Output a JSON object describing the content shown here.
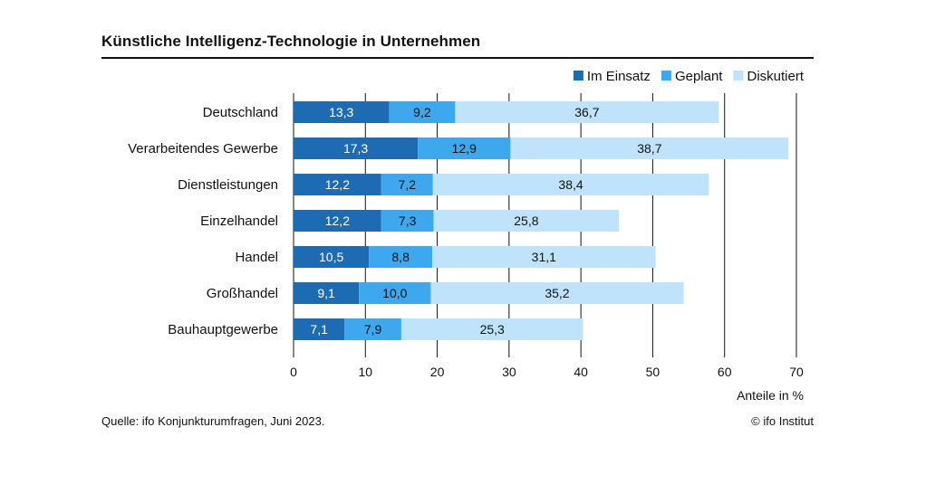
{
  "title": "Künstliche Intelligenz-Technologie in Unternehmen",
  "source": "Quelle: ifo Konjunkturumfragen, Juni 2023.",
  "copyright": "© ifo Institut",
  "colors": {
    "im_einsatz": "#1d6cb3",
    "geplant": "#3ea8ee",
    "diskutiert": "#bfe3fb",
    "grid": "#111111"
  },
  "chart_data": {
    "type": "bar",
    "orientation": "horizontal",
    "stacked": true,
    "title": "Künstliche Intelligenz-Technologie in Unternehmen",
    "xlabel": "Anteile in %",
    "ylabel": "",
    "xlim": [
      0,
      70
    ],
    "xticks": [
      0,
      10,
      20,
      30,
      40,
      50,
      60,
      70
    ],
    "grid": true,
    "legend_position": "top-right",
    "categories": [
      "Deutschland",
      "Verarbeitendes Gewerbe",
      "Dienstleistungen",
      "Einzelhandel",
      "Handel",
      "Großhandel",
      "Bauhauptgewerbe"
    ],
    "series": [
      {
        "name": "Im Einsatz",
        "color": "#1d6cb3",
        "label_color": "#ffffff",
        "values": [
          13.3,
          17.3,
          12.2,
          12.2,
          10.5,
          9.1,
          7.1
        ],
        "labels": [
          "13,3",
          "17,3",
          "12,2",
          "12,2",
          "10,5",
          "9,1",
          "7,1"
        ]
      },
      {
        "name": "Geplant",
        "color": "#3ea8ee",
        "label_color": "#111111",
        "values": [
          9.2,
          12.9,
          7.2,
          7.3,
          8.8,
          10.0,
          7.9
        ],
        "labels": [
          "9,2",
          "12,9",
          "7,2",
          "7,3",
          "8,8",
          "10,0",
          "7,9"
        ]
      },
      {
        "name": "Diskutiert",
        "color": "#bfe3fb",
        "label_color": "#111111",
        "values": [
          36.7,
          38.7,
          38.4,
          25.8,
          31.1,
          35.2,
          25.3
        ],
        "labels": [
          "36,7",
          "38,7",
          "38,4",
          "25,8",
          "31,1",
          "35,2",
          "25,3"
        ]
      }
    ]
  }
}
